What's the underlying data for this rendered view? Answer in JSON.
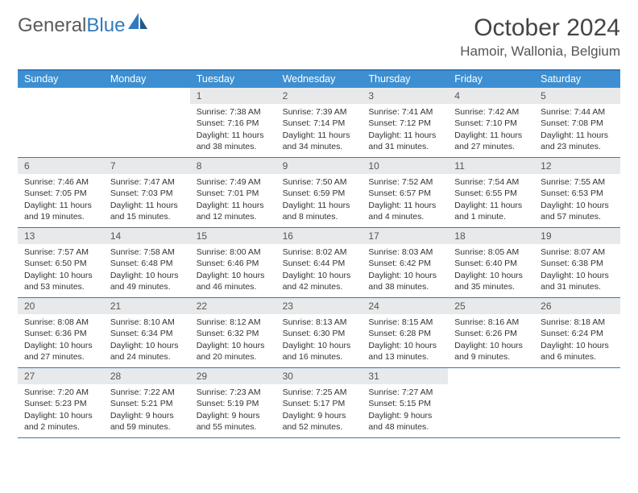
{
  "logo": {
    "word1": "General",
    "word2": "Blue"
  },
  "title": "October 2024",
  "location": "Hamoir, Wallonia, Belgium",
  "colors": {
    "header_bg": "#3d8fd1",
    "header_text": "#ffffff",
    "border": "#2f7bbf",
    "daynum_bg": "#e8e9ea",
    "logo_gray": "#5a5a5a",
    "logo_blue": "#2f7bbf"
  },
  "day_names": [
    "Sunday",
    "Monday",
    "Tuesday",
    "Wednesday",
    "Thursday",
    "Friday",
    "Saturday"
  ],
  "weeks": [
    [
      {
        "n": "",
        "sr": "",
        "ss": "",
        "d1": "",
        "d2": "",
        "e": true
      },
      {
        "n": "",
        "sr": "",
        "ss": "",
        "d1": "",
        "d2": "",
        "e": true
      },
      {
        "n": "1",
        "sr": "Sunrise: 7:38 AM",
        "ss": "Sunset: 7:16 PM",
        "d1": "Daylight: 11 hours",
        "d2": "and 38 minutes."
      },
      {
        "n": "2",
        "sr": "Sunrise: 7:39 AM",
        "ss": "Sunset: 7:14 PM",
        "d1": "Daylight: 11 hours",
        "d2": "and 34 minutes."
      },
      {
        "n": "3",
        "sr": "Sunrise: 7:41 AM",
        "ss": "Sunset: 7:12 PM",
        "d1": "Daylight: 11 hours",
        "d2": "and 31 minutes."
      },
      {
        "n": "4",
        "sr": "Sunrise: 7:42 AM",
        "ss": "Sunset: 7:10 PM",
        "d1": "Daylight: 11 hours",
        "d2": "and 27 minutes."
      },
      {
        "n": "5",
        "sr": "Sunrise: 7:44 AM",
        "ss": "Sunset: 7:08 PM",
        "d1": "Daylight: 11 hours",
        "d2": "and 23 minutes."
      }
    ],
    [
      {
        "n": "6",
        "sr": "Sunrise: 7:46 AM",
        "ss": "Sunset: 7:05 PM",
        "d1": "Daylight: 11 hours",
        "d2": "and 19 minutes."
      },
      {
        "n": "7",
        "sr": "Sunrise: 7:47 AM",
        "ss": "Sunset: 7:03 PM",
        "d1": "Daylight: 11 hours",
        "d2": "and 15 minutes."
      },
      {
        "n": "8",
        "sr": "Sunrise: 7:49 AM",
        "ss": "Sunset: 7:01 PM",
        "d1": "Daylight: 11 hours",
        "d2": "and 12 minutes."
      },
      {
        "n": "9",
        "sr": "Sunrise: 7:50 AM",
        "ss": "Sunset: 6:59 PM",
        "d1": "Daylight: 11 hours",
        "d2": "and 8 minutes."
      },
      {
        "n": "10",
        "sr": "Sunrise: 7:52 AM",
        "ss": "Sunset: 6:57 PM",
        "d1": "Daylight: 11 hours",
        "d2": "and 4 minutes."
      },
      {
        "n": "11",
        "sr": "Sunrise: 7:54 AM",
        "ss": "Sunset: 6:55 PM",
        "d1": "Daylight: 11 hours",
        "d2": "and 1 minute."
      },
      {
        "n": "12",
        "sr": "Sunrise: 7:55 AM",
        "ss": "Sunset: 6:53 PM",
        "d1": "Daylight: 10 hours",
        "d2": "and 57 minutes."
      }
    ],
    [
      {
        "n": "13",
        "sr": "Sunrise: 7:57 AM",
        "ss": "Sunset: 6:50 PM",
        "d1": "Daylight: 10 hours",
        "d2": "and 53 minutes."
      },
      {
        "n": "14",
        "sr": "Sunrise: 7:58 AM",
        "ss": "Sunset: 6:48 PM",
        "d1": "Daylight: 10 hours",
        "d2": "and 49 minutes."
      },
      {
        "n": "15",
        "sr": "Sunrise: 8:00 AM",
        "ss": "Sunset: 6:46 PM",
        "d1": "Daylight: 10 hours",
        "d2": "and 46 minutes."
      },
      {
        "n": "16",
        "sr": "Sunrise: 8:02 AM",
        "ss": "Sunset: 6:44 PM",
        "d1": "Daylight: 10 hours",
        "d2": "and 42 minutes."
      },
      {
        "n": "17",
        "sr": "Sunrise: 8:03 AM",
        "ss": "Sunset: 6:42 PM",
        "d1": "Daylight: 10 hours",
        "d2": "and 38 minutes."
      },
      {
        "n": "18",
        "sr": "Sunrise: 8:05 AM",
        "ss": "Sunset: 6:40 PM",
        "d1": "Daylight: 10 hours",
        "d2": "and 35 minutes."
      },
      {
        "n": "19",
        "sr": "Sunrise: 8:07 AM",
        "ss": "Sunset: 6:38 PM",
        "d1": "Daylight: 10 hours",
        "d2": "and 31 minutes."
      }
    ],
    [
      {
        "n": "20",
        "sr": "Sunrise: 8:08 AM",
        "ss": "Sunset: 6:36 PM",
        "d1": "Daylight: 10 hours",
        "d2": "and 27 minutes."
      },
      {
        "n": "21",
        "sr": "Sunrise: 8:10 AM",
        "ss": "Sunset: 6:34 PM",
        "d1": "Daylight: 10 hours",
        "d2": "and 24 minutes."
      },
      {
        "n": "22",
        "sr": "Sunrise: 8:12 AM",
        "ss": "Sunset: 6:32 PM",
        "d1": "Daylight: 10 hours",
        "d2": "and 20 minutes."
      },
      {
        "n": "23",
        "sr": "Sunrise: 8:13 AM",
        "ss": "Sunset: 6:30 PM",
        "d1": "Daylight: 10 hours",
        "d2": "and 16 minutes."
      },
      {
        "n": "24",
        "sr": "Sunrise: 8:15 AM",
        "ss": "Sunset: 6:28 PM",
        "d1": "Daylight: 10 hours",
        "d2": "and 13 minutes."
      },
      {
        "n": "25",
        "sr": "Sunrise: 8:16 AM",
        "ss": "Sunset: 6:26 PM",
        "d1": "Daylight: 10 hours",
        "d2": "and 9 minutes."
      },
      {
        "n": "26",
        "sr": "Sunrise: 8:18 AM",
        "ss": "Sunset: 6:24 PM",
        "d1": "Daylight: 10 hours",
        "d2": "and 6 minutes."
      }
    ],
    [
      {
        "n": "27",
        "sr": "Sunrise: 7:20 AM",
        "ss": "Sunset: 5:23 PM",
        "d1": "Daylight: 10 hours",
        "d2": "and 2 minutes."
      },
      {
        "n": "28",
        "sr": "Sunrise: 7:22 AM",
        "ss": "Sunset: 5:21 PM",
        "d1": "Daylight: 9 hours",
        "d2": "and 59 minutes."
      },
      {
        "n": "29",
        "sr": "Sunrise: 7:23 AM",
        "ss": "Sunset: 5:19 PM",
        "d1": "Daylight: 9 hours",
        "d2": "and 55 minutes."
      },
      {
        "n": "30",
        "sr": "Sunrise: 7:25 AM",
        "ss": "Sunset: 5:17 PM",
        "d1": "Daylight: 9 hours",
        "d2": "and 52 minutes."
      },
      {
        "n": "31",
        "sr": "Sunrise: 7:27 AM",
        "ss": "Sunset: 5:15 PM",
        "d1": "Daylight: 9 hours",
        "d2": "and 48 minutes."
      },
      {
        "n": "",
        "sr": "",
        "ss": "",
        "d1": "",
        "d2": "",
        "e": true
      },
      {
        "n": "",
        "sr": "",
        "ss": "",
        "d1": "",
        "d2": "",
        "e": true
      }
    ]
  ]
}
